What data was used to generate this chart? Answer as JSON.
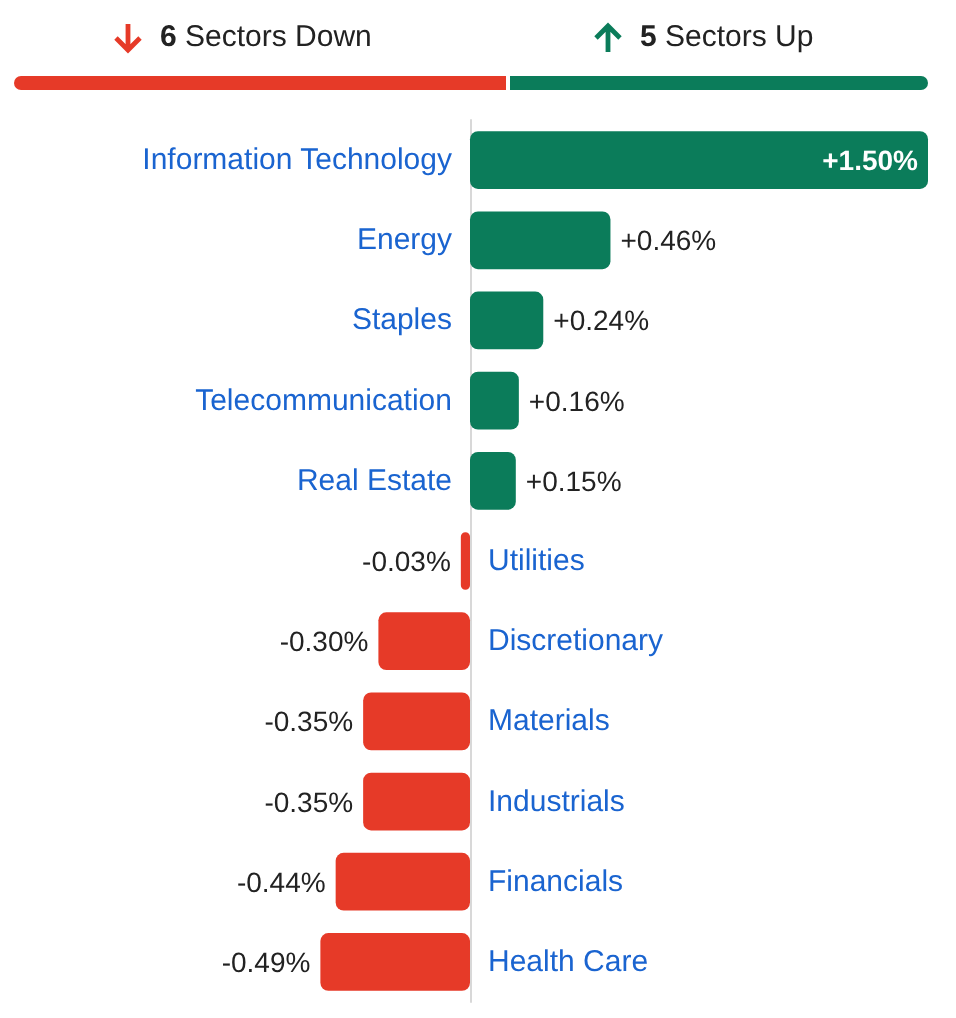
{
  "chart_data": {
    "type": "bar",
    "orientation": "horizontal",
    "categories": [
      "Information Technology",
      "Energy",
      "Staples",
      "Telecommunication",
      "Real Estate",
      "Utilities",
      "Discretionary",
      "Materials",
      "Industrials",
      "Financials",
      "Health Care"
    ],
    "values": [
      1.5,
      0.46,
      0.24,
      0.16,
      0.15,
      -0.03,
      -0.3,
      -0.35,
      -0.35,
      -0.44,
      -0.49
    ],
    "value_labels": [
      "+1.50%",
      "+0.46%",
      "+0.24%",
      "+0.16%",
      "+0.15%",
      "-0.03%",
      "-0.30%",
      "-0.35%",
      "-0.35%",
      "-0.44%",
      "-0.49%"
    ],
    "colors": [
      "#0b7c5a",
      "#0b7c5a",
      "#0b7c5a",
      "#0b7c5a",
      "#0b7c5a",
      "#e63a28",
      "#e63a28",
      "#e63a28",
      "#e63a28",
      "#e63a28",
      "#e63a28"
    ],
    "annotations": [
      "6 Sectors Down",
      "5 Sectors Up"
    ]
  }
}
